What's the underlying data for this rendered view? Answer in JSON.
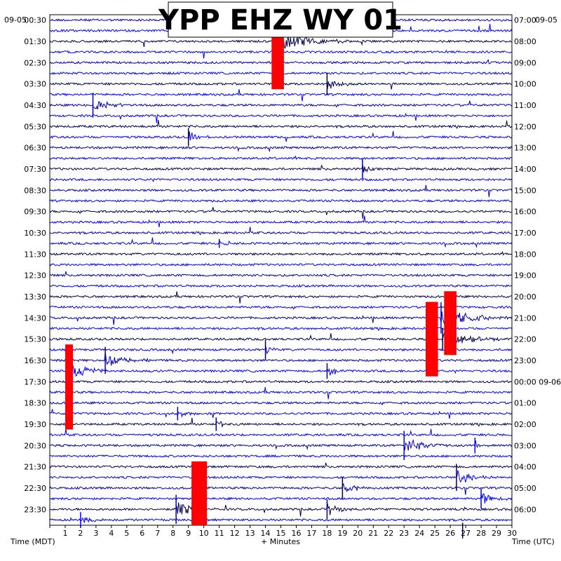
{
  "chart_data": {
    "type": "line",
    "title": "YPP EHZ WY 01",
    "date_left": "09-05",
    "date_right_top": "09-05",
    "date_rollover_label": "09-06",
    "xlabel": "+ Minutes",
    "xlabel_left": "Time (MDT)",
    "xlabel_right": "Time (UTC)",
    "x_ticks": [
      "1",
      "2",
      "3",
      "4",
      "5",
      "6",
      "7",
      "8",
      "9",
      "10",
      "11",
      "12",
      "13",
      "14",
      "15",
      "16",
      "17",
      "18",
      "19",
      "20",
      "21",
      "22",
      "23",
      "24",
      "25",
      "26",
      "27",
      "28",
      "29",
      "30"
    ],
    "xlim": [
      0,
      30
    ],
    "rows_per_hour": 2,
    "trace_colors": [
      "#0000b0",
      "#0000ff",
      "#000050",
      "#0000ff"
    ],
    "left_labels": [
      "00:30",
      "01:30",
      "02:30",
      "03:30",
      "04:30",
      "05:30",
      "06:30",
      "07:30",
      "08:30",
      "09:30",
      "10:30",
      "11:30",
      "12:30",
      "13:30",
      "14:30",
      "15:30",
      "16:30",
      "17:30",
      "18:30",
      "19:30",
      "20:30",
      "21:30",
      "22:30",
      "23:30"
    ],
    "right_labels": [
      "07:00",
      "08:00",
      "09:00",
      "10:00",
      "11:00",
      "12:00",
      "13:00",
      "14:00",
      "15:00",
      "16:00",
      "17:00",
      "18:00",
      "19:00",
      "20:00",
      "21:00",
      "22:00",
      "23:00",
      "00:00 09-06",
      "01:00",
      "02:00",
      "03:00",
      "04:00",
      "05:00",
      "06:00"
    ],
    "clipped_blocks": [
      {
        "minute": 14.4,
        "width_min": 0.8,
        "row_start": 1,
        "row_end": 7,
        "color": "#ff0000"
      },
      {
        "minute": 24.4,
        "width_min": 0.8,
        "row_start": 27,
        "row_end": 34,
        "color": "#ff0000"
      },
      {
        "minute": 25.6,
        "width_min": 0.8,
        "row_start": 26,
        "row_end": 32,
        "color": "#ff0000"
      },
      {
        "minute": 1.0,
        "width_min": 0.5,
        "row_start": 31,
        "row_end": 39,
        "color": "#ff0000"
      },
      {
        "minute": 9.2,
        "width_min": 1.0,
        "row_start": 42,
        "row_end": 48,
        "color": "#ff0000"
      }
    ],
    "events": [
      {
        "row": 2,
        "minute": 14.9,
        "amp": 14,
        "duration": 5,
        "color": "#0000ff"
      },
      {
        "row": 6,
        "minute": 18.0,
        "amp": 10,
        "duration": 2,
        "color": "#000050"
      },
      {
        "row": 8,
        "minute": 2.8,
        "amp": 11,
        "duration": 2.5,
        "color": "#0000ff"
      },
      {
        "row": 11,
        "minute": 9.0,
        "amp": 8,
        "duration": 2,
        "color": "#000050"
      },
      {
        "row": 14,
        "minute": 20.3,
        "amp": 9,
        "duration": 0.8,
        "color": "#0000b0"
      },
      {
        "row": 21,
        "minute": 11.0,
        "amp": 4,
        "duration": 2,
        "color": "#0000ff"
      },
      {
        "row": 28,
        "minute": 25.4,
        "amp": 14,
        "duration": 5,
        "color": "#0000ff"
      },
      {
        "row": 30,
        "minute": 25.5,
        "amp": 10,
        "duration": 5,
        "color": "#000050"
      },
      {
        "row": 31,
        "minute": 14.0,
        "amp": 9,
        "duration": 1.2,
        "color": "#000050"
      },
      {
        "row": 32,
        "minute": 3.6,
        "amp": 12,
        "duration": 3,
        "color": "#0000b0"
      },
      {
        "row": 33,
        "minute": 1.3,
        "amp": 14,
        "duration": 3,
        "color": "#0000ff"
      },
      {
        "row": 33,
        "minute": 18.0,
        "amp": 7,
        "duration": 2,
        "color": "#0000b0"
      },
      {
        "row": 37,
        "minute": 8.3,
        "amp": 6,
        "duration": 1.5,
        "color": "#0000ff"
      },
      {
        "row": 38,
        "minute": 10.8,
        "amp": 6,
        "duration": 1.5,
        "color": "#0000b0"
      },
      {
        "row": 40,
        "minute": 23.0,
        "amp": 13,
        "duration": 3,
        "color": "#0000ff"
      },
      {
        "row": 40,
        "minute": 27.6,
        "amp": 7,
        "duration": 1.5,
        "color": "#0000ff"
      },
      {
        "row": 43,
        "minute": 26.4,
        "amp": 12,
        "duration": 2.5,
        "color": "#000050"
      },
      {
        "row": 44,
        "minute": 19.0,
        "amp": 10,
        "duration": 2,
        "color": "#000050"
      },
      {
        "row": 45,
        "minute": 28.0,
        "amp": 9,
        "duration": 2,
        "color": "#0000ff"
      },
      {
        "row": 46,
        "minute": 8.2,
        "amp": 13,
        "duration": 3,
        "color": "#0000b0"
      },
      {
        "row": 46,
        "minute": 18.0,
        "amp": 9,
        "duration": 2,
        "color": "#0000b0"
      },
      {
        "row": 47,
        "minute": 2.0,
        "amp": 7,
        "duration": 2,
        "color": "#0000ff"
      },
      {
        "row": 48,
        "minute": 26.8,
        "amp": 7,
        "duration": 1.5,
        "color": "#000050"
      }
    ]
  }
}
